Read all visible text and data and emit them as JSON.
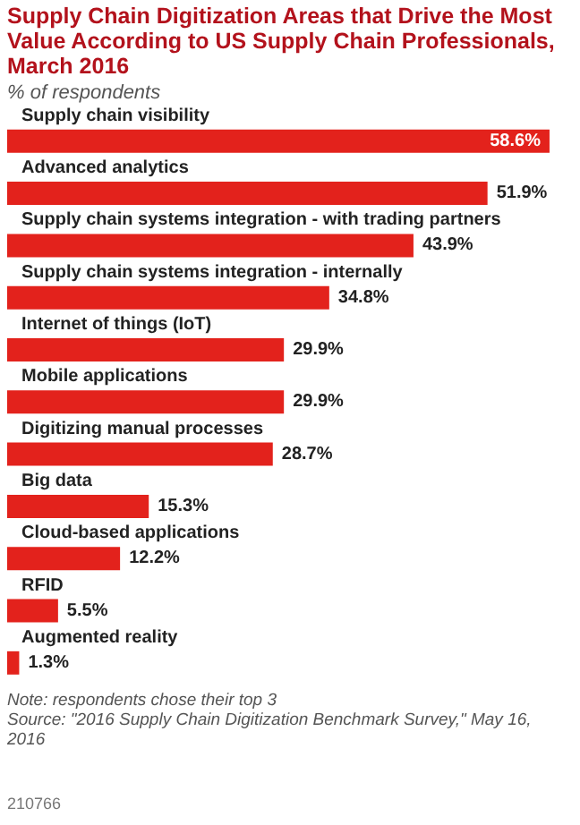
{
  "chart_data": {
    "type": "bar",
    "orientation": "horizontal",
    "title": "Supply Chain Digitization Areas that Drive the Most Value According to US Supply Chain Professionals, March 2016",
    "subtitle": "% of respondents",
    "categories": [
      "Supply chain visibility",
      "Advanced analytics",
      "Supply chain systems integration - with trading partners",
      "Supply chain systems integration - internally",
      "Internet of things (IoT)",
      "Mobile applications",
      "Digitizing manual processes",
      "Big data",
      "Cloud-based applications",
      "RFID",
      "Augmented reality"
    ],
    "values": [
      58.6,
      51.9,
      43.9,
      34.8,
      29.9,
      29.9,
      28.7,
      15.3,
      12.2,
      5.5,
      1.3
    ],
    "value_labels": [
      "58.6%",
      "51.9%",
      "43.9%",
      "34.8%",
      "29.9%",
      "29.9%",
      "28.7%",
      "15.3%",
      "12.2%",
      "5.5%",
      "1.3%"
    ],
    "color": "#e3221c",
    "annotations": [
      "Note: respondents chose their top 3",
      "Source: \"2016 Supply Chain Digitization Benchmark Survey,\" May 16, 2016",
      "210766"
    ]
  }
}
